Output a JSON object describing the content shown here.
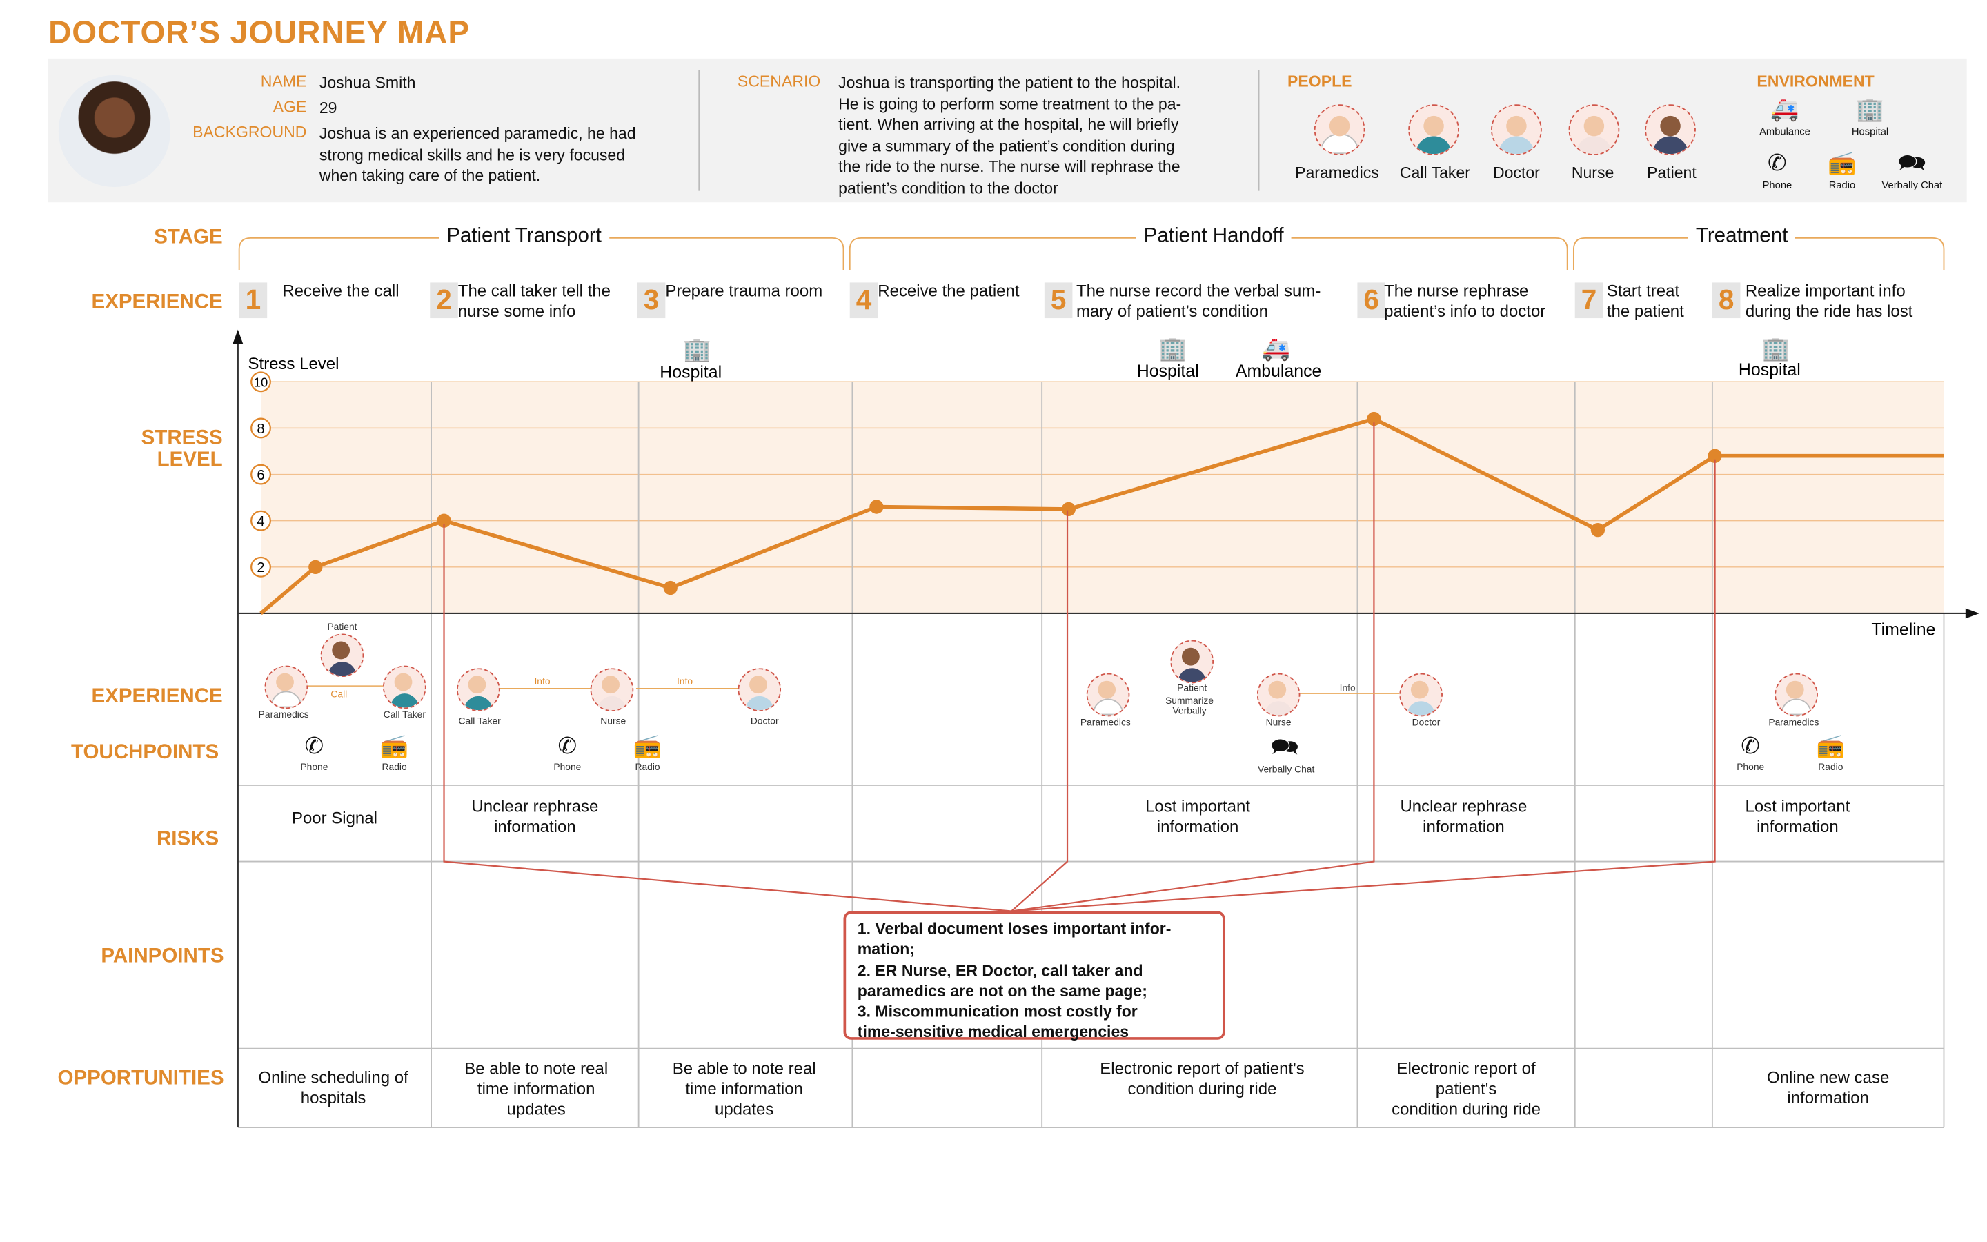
{
  "title": "DOCTOR’S  JOURNEY MAP",
  "profile": {
    "name_label": "NAME",
    "name": "Joshua Smith",
    "age_label": "AGE",
    "age": "29",
    "background_label": "BACKGROUND",
    "background_lines": [
      "Joshua is an experienced paramedic, he had",
      "strong medical skills and he is very focused",
      "when taking care of the patient."
    ],
    "scenario_label": "SCENARIO",
    "scenario_lines": [
      "Joshua is transporting the patient to the hospital.",
      "He is going to perform some treatment to the pa-",
      "tient. When arriving at the hospital, he will briefly",
      "give a summary of the patient’s condition during",
      "the ride to the nurse. The nurse will rephrase the",
      "patient’s condition to the doctor"
    ],
    "people_label": "PEOPLE",
    "people": [
      "Paramedics",
      "Call Taker",
      "Doctor",
      "Nurse",
      "Patient"
    ],
    "environment_label": "ENVIRONMENT",
    "environment": [
      "Ambulance",
      "Hospital",
      "Phone",
      "Radio",
      "Verbally Chat"
    ]
  },
  "row_labels": {
    "stage": "STAGE",
    "experience": "EXPERIENCE",
    "stress": [
      "STRESS",
      "LEVEL"
    ],
    "exp_touch_1": "EXPERIENCE",
    "exp_touch_2": "TOUCHPOINTS",
    "risks": "RISKS",
    "painpoints": "PAINPOINTS",
    "opportunities": "OPPORTUNITIES"
  },
  "stages": [
    "Patient Transport",
    "Patient Handoff",
    "Treatment"
  ],
  "experiences": [
    {
      "num": "1",
      "lines": [
        "Receive the call"
      ]
    },
    {
      "num": "2",
      "lines": [
        "The call taker tell the",
        "nurse some info"
      ]
    },
    {
      "num": "3",
      "lines": [
        "Prepare trauma room"
      ]
    },
    {
      "num": "4",
      "lines": [
        "Receive the patient"
      ]
    },
    {
      "num": "5",
      "lines": [
        "The nurse record the verbal sum-",
        "mary of patient’s condition"
      ]
    },
    {
      "num": "6",
      "lines": [
        "The nurse rephrase",
        "patient’s info to doctor"
      ]
    },
    {
      "num": "7",
      "lines": [
        "Start treat",
        "the patient"
      ]
    },
    {
      "num": "8",
      "lines": [
        "Realize important info",
        "during the ride has lost"
      ]
    }
  ],
  "chart_data": {
    "type": "line",
    "ylabel": "Stress Level",
    "xlabel": "Timeline",
    "ylim": [
      0,
      10
    ],
    "yticks": [
      "2",
      "4",
      "6",
      "8",
      "10"
    ],
    "series": [
      {
        "points": [
          {
            "step": "start",
            "y": 0.0
          },
          {
            "step": "1",
            "y": 2.0
          },
          {
            "step": "2",
            "y": 4.0
          },
          {
            "step": "3",
            "y": 1.1
          },
          {
            "step": "4",
            "y": 4.6
          },
          {
            "step": "5",
            "y": 4.5
          },
          {
            "step": "6",
            "y": 8.4
          },
          {
            "step": "7",
            "y": 3.6
          },
          {
            "step": "8",
            "y": 6.8
          },
          {
            "step": "end",
            "y": 6.8
          }
        ]
      }
    ],
    "annotations": [
      "Hospital",
      "Hospital",
      "Ambulance",
      "Hospital"
    ]
  },
  "touchpoints": {
    "g1": {
      "people": [
        "Patient",
        "Paramedics",
        "Call Taker"
      ],
      "flow": "Call",
      "tools": [
        "Phone",
        "Radio"
      ]
    },
    "g2": {
      "people": [
        "Call Taker",
        "Nurse",
        "Doctor"
      ],
      "flows": [
        "Info",
        "Info"
      ],
      "tools": [
        "Phone",
        "Radio"
      ]
    },
    "g3": {
      "people": [
        "Paramedics",
        "Patient",
        "Nurse",
        "Doctor"
      ],
      "note": [
        "Summarize",
        "Verbally"
      ],
      "flow": "Info",
      "tools": [
        "Verbally Chat"
      ]
    },
    "g4": {
      "people": [
        "Paramedics"
      ],
      "tools": [
        "Phone",
        "Radio"
      ]
    }
  },
  "risks": [
    {
      "lines": [
        "Poor Signal"
      ]
    },
    {
      "lines": [
        "Unclear rephrase",
        "information"
      ]
    },
    {
      "lines": [
        "Lost important",
        "information"
      ]
    },
    {
      "lines": [
        "Unclear rephrase",
        "information"
      ]
    },
    {
      "lines": [
        "Lost important",
        "information"
      ]
    }
  ],
  "painpoints": [
    "1. Verbal document loses important infor-",
    "mation;",
    "2. ER Nurse, ER Doctor, call taker and",
    "paramedics are not on the same page;",
    "3. Miscommunication most costly for",
    "time-sensitive medical emergencies"
  ],
  "opportunities": [
    {
      "lines": [
        "Online scheduling of",
        "hospitals"
      ]
    },
    {
      "lines": [
        "Be able to note real",
        "time  information",
        "updates"
      ]
    },
    {
      "lines": [
        "Be able to note real",
        "time information",
        "updates"
      ]
    },
    {
      "lines": [
        "Electronic report of patient's",
        "condition during ride"
      ]
    },
    {
      "lines": [
        "Electronic report of",
        "patient's",
        "condition during ride"
      ]
    },
    {
      "lines": [
        "Online new case",
        "information"
      ]
    }
  ],
  "colors": {
    "accent": "#E08A2C",
    "line": "#E0862A",
    "pain": "#D0564A",
    "fill": "#FBEADB"
  }
}
